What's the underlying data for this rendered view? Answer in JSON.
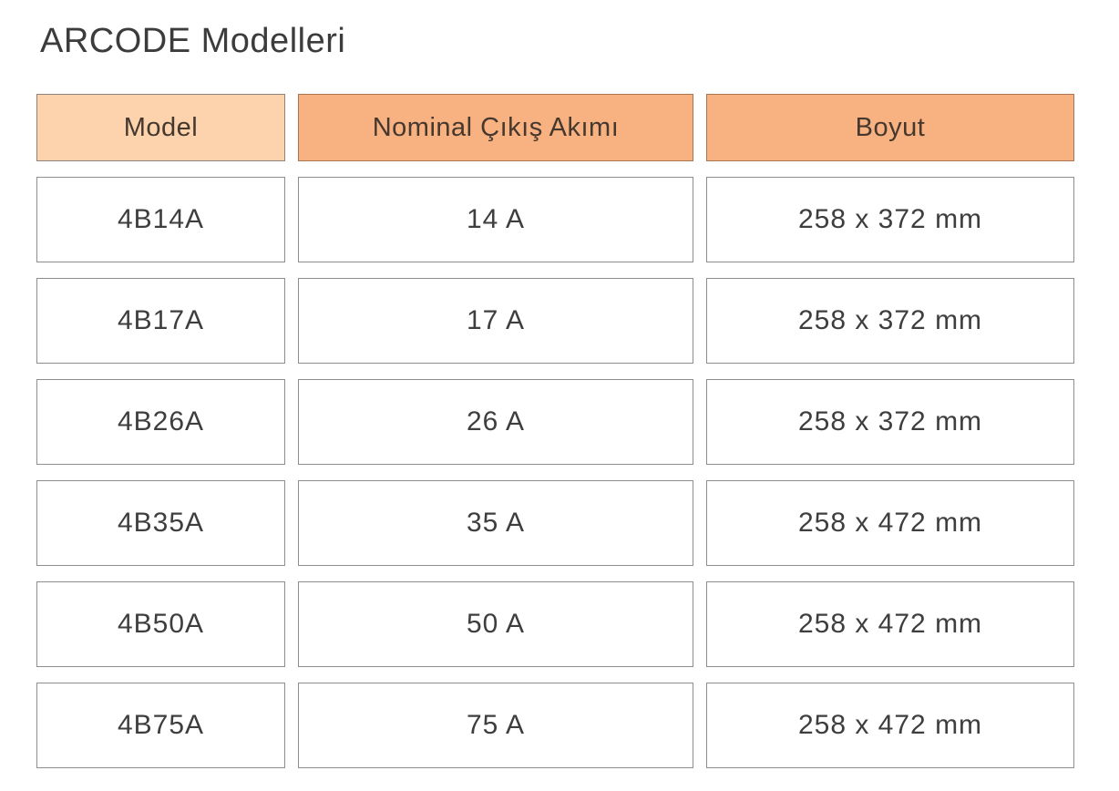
{
  "page": {
    "title": "ARCODE Modelleri"
  },
  "table": {
    "columns": [
      "Model",
      "Nominal Çıkış Akımı",
      "Boyut"
    ],
    "rows": [
      [
        "4B14A",
        "14 A",
        "258 x 372 mm"
      ],
      [
        "4B17A",
        "17 A",
        "258 x 372 mm"
      ],
      [
        "4B26A",
        "26 A",
        "258 x 372 mm"
      ],
      [
        "4B35A",
        "35 A",
        "258 x 472 mm"
      ],
      [
        "4B50A",
        "50 A",
        "258 x 472 mm"
      ],
      [
        "4B75A",
        "75 A",
        "258 x 472 mm"
      ]
    ]
  },
  "colors": {
    "title_text": "#3c3c3c",
    "header_light_bg": "#fcd3ac",
    "header_light_border": "#91827a",
    "header_dark_bg": "#f8b181",
    "header_dark_border": "#a9744f",
    "header_text": "#45382e",
    "cell_bg": "#ffffff",
    "cell_border": "#8d8d8d",
    "cell_text": "#3e3e3e"
  }
}
